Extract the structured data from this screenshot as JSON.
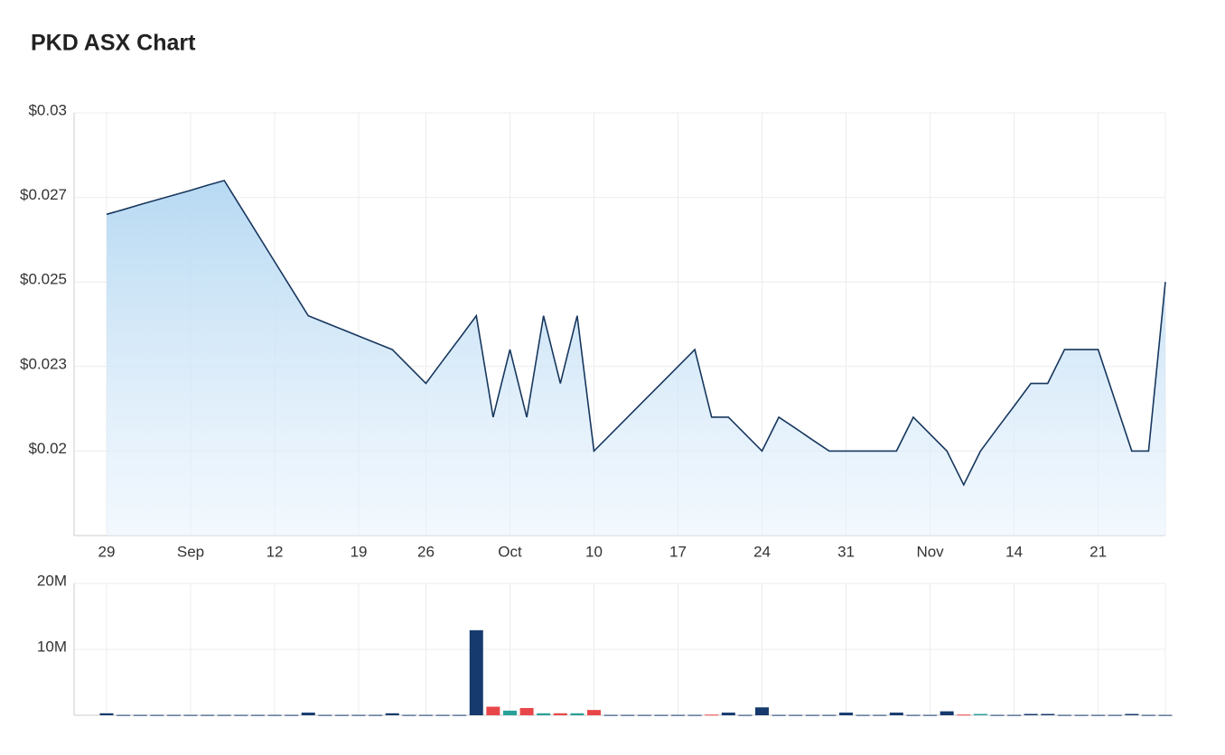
{
  "chart_data": [
    {
      "type": "line",
      "title": "PKD ASX Chart",
      "categories": [
        "29",
        null,
        null,
        null,
        null,
        "Sep",
        null,
        null,
        null,
        null,
        "12",
        null,
        null,
        null,
        null,
        "19",
        null,
        null,
        null,
        "26",
        null,
        null,
        null,
        null,
        "Oct",
        null,
        null,
        null,
        null,
        "10",
        null,
        null,
        null,
        null,
        "17",
        null,
        null,
        null,
        null,
        "24",
        null,
        null,
        null,
        null,
        "31",
        null,
        null,
        null,
        null,
        "Nov",
        null,
        null,
        null,
        null,
        "14",
        null,
        null,
        null,
        null,
        "21",
        null,
        null,
        null,
        null
      ],
      "values": [
        0.027,
        0.02714,
        0.02729,
        0.02743,
        0.02757,
        0.02771,
        0.02786,
        0.028,
        0.0272,
        0.0264,
        0.0256,
        0.0248,
        0.024,
        0.0238,
        0.0236,
        0.0234,
        0.0232,
        0.023,
        0.0225,
        0.022,
        0.02267,
        0.02333,
        0.024,
        0.021,
        0.023,
        0.021,
        0.024,
        0.022,
        0.024,
        0.02,
        0.0205,
        0.021,
        0.0215,
        0.022,
        0.0225,
        0.023,
        0.021,
        0.021,
        0.0205,
        0.02,
        0.021,
        0.02067,
        0.02033,
        0.02,
        0.02,
        0.02,
        0.02,
        0.02,
        0.021,
        0.0205,
        0.02,
        0.019,
        0.02,
        0.02067,
        0.02133,
        0.022,
        0.022,
        0.023,
        0.023,
        0.023,
        0.0215,
        0.02,
        0.02,
        0.025
      ],
      "color": "#17375e",
      "ylim": [
        0.0175,
        0.03
      ],
      "yticks": [
        {
          "value": 0.02,
          "label": "$0.02"
        },
        {
          "value": 0.0225,
          "label": "$0.023"
        },
        {
          "value": 0.025,
          "label": "$0.025"
        },
        {
          "value": 0.0275,
          "label": "$0.027"
        },
        {
          "value": 0.03,
          "label": "$0.03"
        }
      ],
      "grid": true
    },
    {
      "type": "bar",
      "values": [
        300000,
        50000,
        50000,
        50000,
        50000,
        50000,
        50000,
        50000,
        50000,
        50000,
        50000,
        50000,
        400000,
        50000,
        50000,
        50000,
        50000,
        300000,
        50000,
        50000,
        50000,
        50000,
        12900000,
        1300000,
        700000,
        1100000,
        300000,
        300000,
        300000,
        800000,
        50000,
        50000,
        50000,
        50000,
        50000,
        50000,
        100000,
        400000,
        50000,
        1200000,
        50000,
        50000,
        50000,
        50000,
        400000,
        50000,
        50000,
        400000,
        50000,
        50000,
        600000,
        100000,
        200000,
        50000,
        50000,
        200000,
        200000,
        50000,
        50000,
        50000,
        50000,
        200000,
        50000,
        50000
      ],
      "colors": [
        "#163a6e",
        "#163a6e",
        "#163a6e",
        "#163a6e",
        "#163a6e",
        "#163a6e",
        "#163a6e",
        "#163a6e",
        "#163a6e",
        "#163a6e",
        "#163a6e",
        "#163a6e",
        "#163a6e",
        "#163a6e",
        "#163a6e",
        "#163a6e",
        "#163a6e",
        "#163a6e",
        "#163a6e",
        "#163a6e",
        "#163a6e",
        "#163a6e",
        "#163a6e",
        "#e8474a",
        "#2aa198",
        "#e8474a",
        "#2aa198",
        "#e8474a",
        "#2aa198",
        "#e8474a",
        "#163a6e",
        "#163a6e",
        "#163a6e",
        "#163a6e",
        "#163a6e",
        "#163a6e",
        "#e8474a",
        "#163a6e",
        "#163a6e",
        "#163a6e",
        "#163a6e",
        "#163a6e",
        "#163a6e",
        "#163a6e",
        "#163a6e",
        "#163a6e",
        "#163a6e",
        "#163a6e",
        "#163a6e",
        "#163a6e",
        "#163a6e",
        "#e8474a",
        "#2aa198",
        "#163a6e",
        "#163a6e",
        "#163a6e",
        "#163a6e",
        "#163a6e",
        "#163a6e",
        "#163a6e",
        "#163a6e",
        "#163a6e",
        "#163a6e",
        "#163a6e"
      ],
      "ylim": [
        0,
        20000000
      ],
      "yticks": [
        {
          "value": 10000000,
          "label": "10M"
        },
        {
          "value": 20000000,
          "label": "20M"
        }
      ],
      "grid": true
    }
  ]
}
